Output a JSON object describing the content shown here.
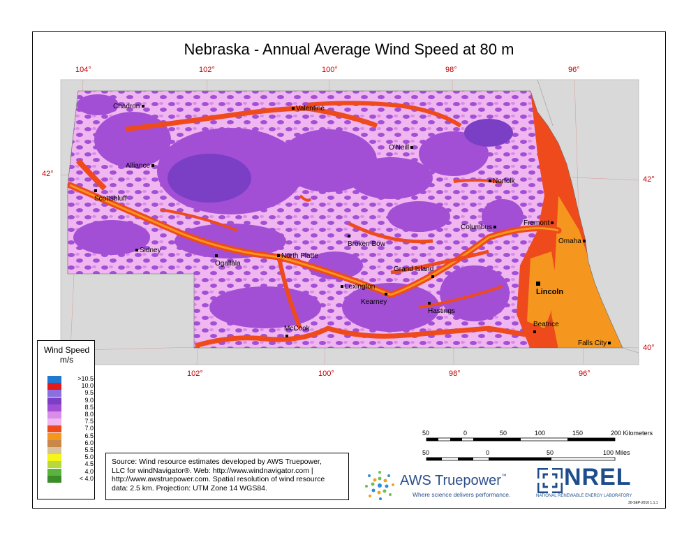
{
  "title": "Nebraska - Annual Average Wind Speed at 80 m",
  "coords": {
    "top": [
      "104°",
      "102°",
      "100°",
      "98°",
      "96°"
    ],
    "bottom": [
      "102°",
      "100°",
      "98°",
      "96°"
    ],
    "left": "42°",
    "right_top": "42°",
    "right_bottom": "40°"
  },
  "cities": {
    "chadron": "Chadron",
    "valentine": "Valentine",
    "oneill": "O'Neill",
    "alliance": "Alliance",
    "norfolk": "Norfolk",
    "scottsbluff": "Scottsbluff",
    "columbus": "Columbus",
    "fremont": "Fremont",
    "broken_bow": "Broken Bow",
    "omaha": "Omaha",
    "sidney": "Sidney",
    "ogallala": "Ogallala",
    "north_platte": "North Platte",
    "grand_island": "Grand Island",
    "lexington": "Lexington",
    "lincoln": "Lincoln",
    "kearney": "Kearney",
    "hastings": "Hastings",
    "mccook": "McCook",
    "beatrice": "Beatrice",
    "falls_city": "Falls City"
  },
  "legend": {
    "title_line1": "Wind Speed",
    "title_line2": "m/s",
    "items": [
      {
        "label": ">10.5",
        "color": "#1f78d1"
      },
      {
        "label": "10.0",
        "color": "#e31a1c"
      },
      {
        "label": "9.5",
        "color": "#8a6fe0"
      },
      {
        "label": "9.0",
        "color": "#7b3fc6"
      },
      {
        "label": "8.5",
        "color": "#a24fd6"
      },
      {
        "label": "8.0",
        "color": "#d98ce8"
      },
      {
        "label": "7.5",
        "color": "#f0b6f0"
      },
      {
        "label": "7.0",
        "color": "#ee4a1c"
      },
      {
        "label": "6.5",
        "color": "#f5961f"
      },
      {
        "label": "6.0",
        "color": "#c7884a"
      },
      {
        "label": "5.5",
        "color": "#d9c39a"
      },
      {
        "label": "5.0",
        "color": "#f5f51a"
      },
      {
        "label": "4.5",
        "color": "#b9d93a"
      },
      {
        "label": "4.0",
        "color": "#5ab43c"
      },
      {
        "label": "< 4.0",
        "color": "#3d8c2a"
      }
    ]
  },
  "scale": {
    "km_labels": [
      "50",
      "0",
      "50",
      "100",
      "150",
      "200 Kilometers"
    ],
    "mi_labels": [
      "50",
      "0",
      "50",
      "100 Miles"
    ]
  },
  "source": {
    "line1": "Source: Wind resource estimates developed by AWS Truepower,",
    "line2": "LLC for windNavigator®. Web: http://www.windnavigator.com |",
    "line3": "http://www.awstruepower.com. Spatial resolution of wind resource",
    "line4": "data: 2.5 km. Projection: UTM Zone 14 WGS84."
  },
  "aws": {
    "name_a": "AWS",
    "name_b": "Truepower",
    "tm": "™",
    "tagline": "Where science delivers performance."
  },
  "nrel": {
    "word": "NREL",
    "sub": "NATIONAL RENEWABLE ENERGY LABORATORY"
  },
  "date_stamp": "30-SEP-2010 1.1.1",
  "colors": {
    "background_land": "#d9d9d9",
    "coord_red": "#c00000"
  }
}
